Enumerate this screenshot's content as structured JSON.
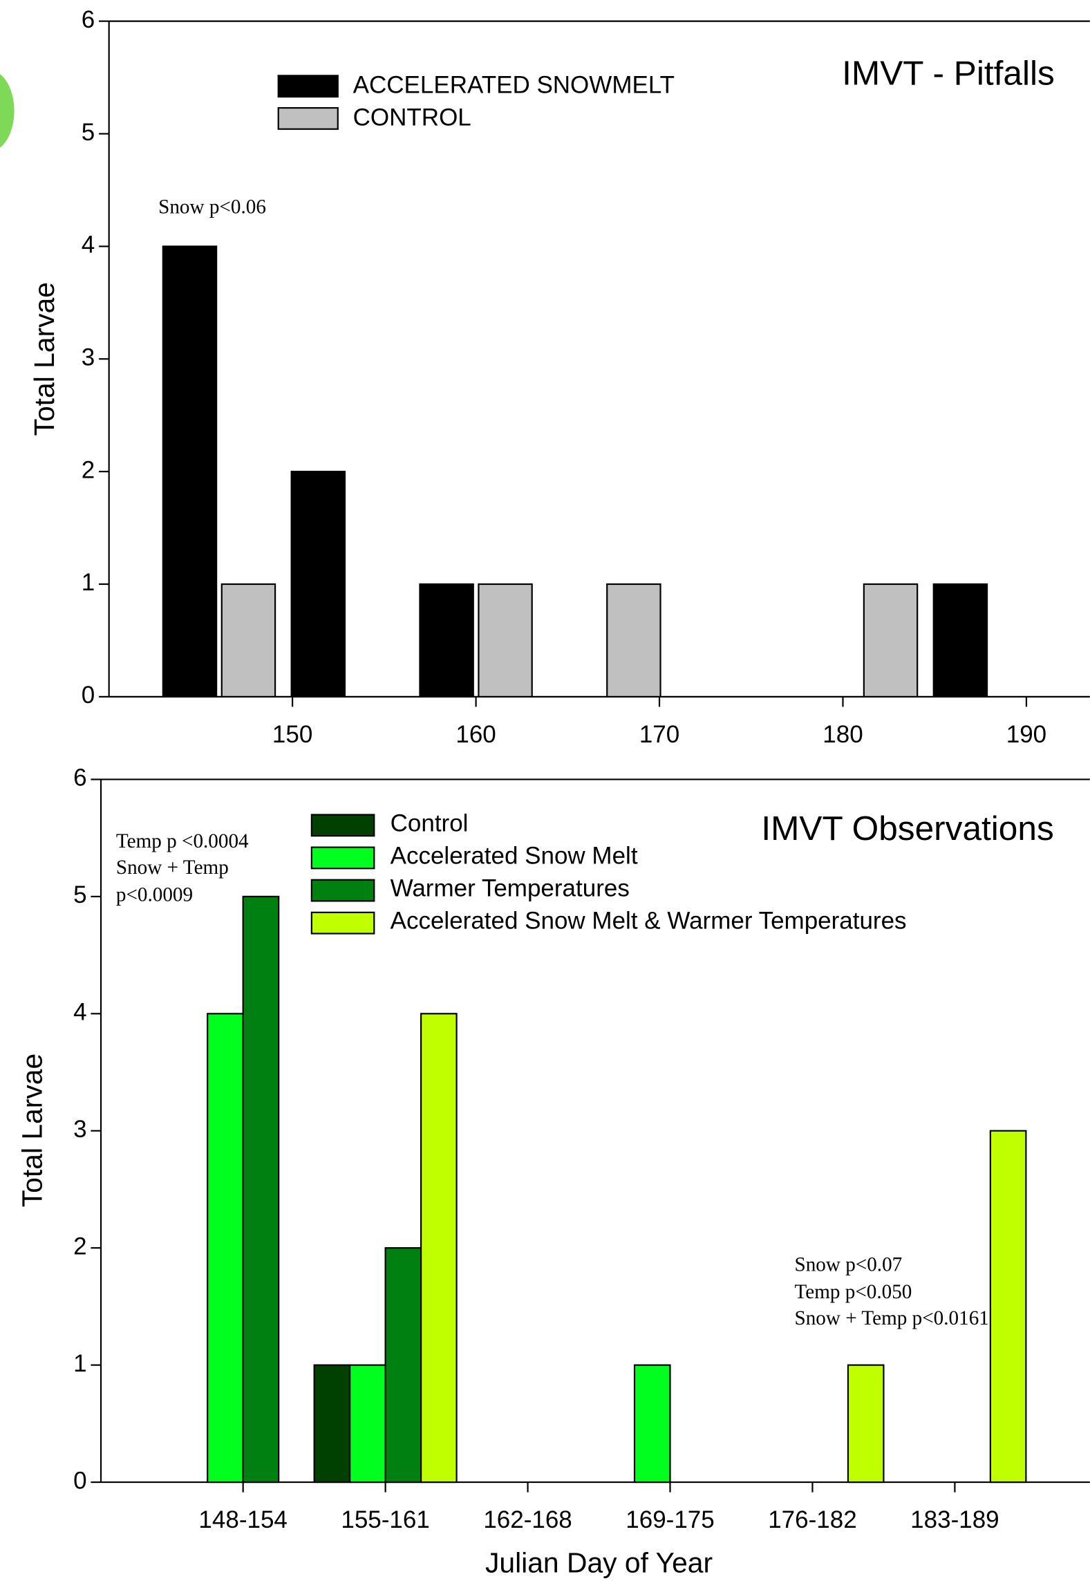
{
  "charts": [
    {
      "type": "bar",
      "title": "IMVT - Pitfalls",
      "y_label": "Total Larvae",
      "annotations": [
        "Snow p<0.06"
      ],
      "series": [
        {
          "name": "ACCELERATED SNOWMELT",
          "color": "#000000",
          "x": [
            144.4,
            151.4,
            158.4,
            186.4
          ],
          "values": [
            4,
            2,
            1,
            1
          ]
        },
        {
          "name": "CONTROL",
          "color": "#c0c0c0",
          "x": [
            147.6,
            161.6,
            168.6,
            182.6
          ],
          "values": [
            1,
            1,
            1,
            1
          ]
        }
      ],
      "xlim": [
        140,
        193.5
      ],
      "xticks": [
        150,
        160,
        170,
        180,
        190
      ],
      "ylim": [
        0,
        6
      ],
      "yticks": [
        0,
        1,
        2,
        3,
        4,
        5,
        6
      ]
    },
    {
      "type": "grouped_bar",
      "title": "IMVT Observations",
      "y_label": "Total Larvae",
      "x_label": "Julian Day of Year",
      "annotations": [
        "Temp p <0.0004",
        "Snow + Temp",
        "p<0.0009",
        "Snow p<0.07",
        "Temp p<0.050",
        "Snow + Temp p<0.0161"
      ],
      "categories": [
        "148-154",
        "155-161",
        "162-168",
        "169-175",
        "176-182",
        "183-189"
      ],
      "series": [
        {
          "name": "Control",
          "color": "#004000",
          "values": [
            0,
            1,
            0,
            0,
            0,
            0
          ]
        },
        {
          "name": "Accelerated Snow Melt",
          "color": "#00ff1e",
          "values": [
            4,
            1,
            0,
            1,
            0,
            0
          ]
        },
        {
          "name": "Warmer Temperatures",
          "color": "#008010",
          "values": [
            5,
            2,
            0,
            0,
            0,
            0
          ]
        },
        {
          "name": "Accelerated Snow Melt & Warmer Temperatures",
          "color": "#c0ff00",
          "values": [
            0,
            4,
            0,
            0,
            1,
            3
          ]
        }
      ],
      "ylim": [
        0,
        6
      ],
      "yticks": [
        0,
        1,
        2,
        3,
        4,
        5,
        6
      ]
    }
  ]
}
